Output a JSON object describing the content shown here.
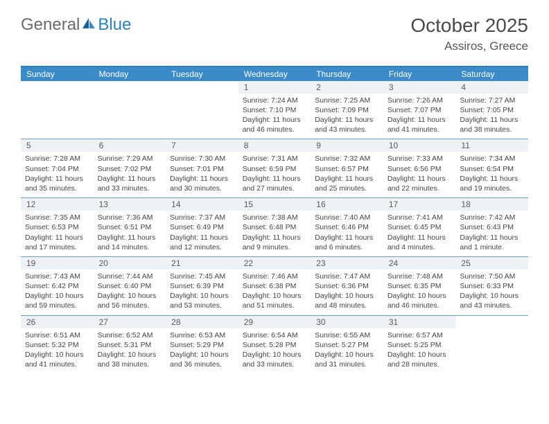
{
  "brand": {
    "general": "General",
    "blue": "Blue"
  },
  "title": "October 2025",
  "location": "Assiros, Greece",
  "colors": {
    "accent": "#3b8bc9",
    "accent_dark": "#2a7fba",
    "band": "#eef2f5",
    "rule": "#6aa0c8",
    "text": "#333333",
    "logo_gray": "#6b6b6b"
  },
  "dow": [
    "Sunday",
    "Monday",
    "Tuesday",
    "Wednesday",
    "Thursday",
    "Friday",
    "Saturday"
  ],
  "weeks": [
    [
      null,
      null,
      null,
      {
        "n": "1",
        "sr": "7:24 AM",
        "ss": "7:10 PM",
        "dl": "11 hours and 46 minutes."
      },
      {
        "n": "2",
        "sr": "7:25 AM",
        "ss": "7:09 PM",
        "dl": "11 hours and 43 minutes."
      },
      {
        "n": "3",
        "sr": "7:26 AM",
        "ss": "7:07 PM",
        "dl": "11 hours and 41 minutes."
      },
      {
        "n": "4",
        "sr": "7:27 AM",
        "ss": "7:05 PM",
        "dl": "11 hours and 38 minutes."
      }
    ],
    [
      {
        "n": "5",
        "sr": "7:28 AM",
        "ss": "7:04 PM",
        "dl": "11 hours and 35 minutes."
      },
      {
        "n": "6",
        "sr": "7:29 AM",
        "ss": "7:02 PM",
        "dl": "11 hours and 33 minutes."
      },
      {
        "n": "7",
        "sr": "7:30 AM",
        "ss": "7:01 PM",
        "dl": "11 hours and 30 minutes."
      },
      {
        "n": "8",
        "sr": "7:31 AM",
        "ss": "6:59 PM",
        "dl": "11 hours and 27 minutes."
      },
      {
        "n": "9",
        "sr": "7:32 AM",
        "ss": "6:57 PM",
        "dl": "11 hours and 25 minutes."
      },
      {
        "n": "10",
        "sr": "7:33 AM",
        "ss": "6:56 PM",
        "dl": "11 hours and 22 minutes."
      },
      {
        "n": "11",
        "sr": "7:34 AM",
        "ss": "6:54 PM",
        "dl": "11 hours and 19 minutes."
      }
    ],
    [
      {
        "n": "12",
        "sr": "7:35 AM",
        "ss": "6:53 PM",
        "dl": "11 hours and 17 minutes."
      },
      {
        "n": "13",
        "sr": "7:36 AM",
        "ss": "6:51 PM",
        "dl": "11 hours and 14 minutes."
      },
      {
        "n": "14",
        "sr": "7:37 AM",
        "ss": "6:49 PM",
        "dl": "11 hours and 12 minutes."
      },
      {
        "n": "15",
        "sr": "7:38 AM",
        "ss": "6:48 PM",
        "dl": "11 hours and 9 minutes."
      },
      {
        "n": "16",
        "sr": "7:40 AM",
        "ss": "6:46 PM",
        "dl": "11 hours and 6 minutes."
      },
      {
        "n": "17",
        "sr": "7:41 AM",
        "ss": "6:45 PM",
        "dl": "11 hours and 4 minutes."
      },
      {
        "n": "18",
        "sr": "7:42 AM",
        "ss": "6:43 PM",
        "dl": "11 hours and 1 minute."
      }
    ],
    [
      {
        "n": "19",
        "sr": "7:43 AM",
        "ss": "6:42 PM",
        "dl": "10 hours and 59 minutes."
      },
      {
        "n": "20",
        "sr": "7:44 AM",
        "ss": "6:40 PM",
        "dl": "10 hours and 56 minutes."
      },
      {
        "n": "21",
        "sr": "7:45 AM",
        "ss": "6:39 PM",
        "dl": "10 hours and 53 minutes."
      },
      {
        "n": "22",
        "sr": "7:46 AM",
        "ss": "6:38 PM",
        "dl": "10 hours and 51 minutes."
      },
      {
        "n": "23",
        "sr": "7:47 AM",
        "ss": "6:36 PM",
        "dl": "10 hours and 48 minutes."
      },
      {
        "n": "24",
        "sr": "7:48 AM",
        "ss": "6:35 PM",
        "dl": "10 hours and 46 minutes."
      },
      {
        "n": "25",
        "sr": "7:50 AM",
        "ss": "6:33 PM",
        "dl": "10 hours and 43 minutes."
      }
    ],
    [
      {
        "n": "26",
        "sr": "6:51 AM",
        "ss": "5:32 PM",
        "dl": "10 hours and 41 minutes."
      },
      {
        "n": "27",
        "sr": "6:52 AM",
        "ss": "5:31 PM",
        "dl": "10 hours and 38 minutes."
      },
      {
        "n": "28",
        "sr": "6:53 AM",
        "ss": "5:29 PM",
        "dl": "10 hours and 36 minutes."
      },
      {
        "n": "29",
        "sr": "6:54 AM",
        "ss": "5:28 PM",
        "dl": "10 hours and 33 minutes."
      },
      {
        "n": "30",
        "sr": "6:55 AM",
        "ss": "5:27 PM",
        "dl": "10 hours and 31 minutes."
      },
      {
        "n": "31",
        "sr": "6:57 AM",
        "ss": "5:25 PM",
        "dl": "10 hours and 28 minutes."
      },
      null
    ]
  ],
  "labels": {
    "sunrise": "Sunrise:",
    "sunset": "Sunset:",
    "daylight": "Daylight:"
  }
}
